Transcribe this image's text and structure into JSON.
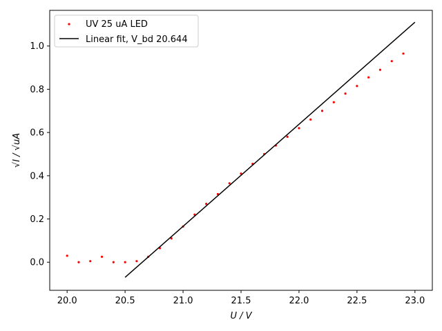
{
  "chart_data": {
    "type": "scatter",
    "xlabel": "U / V",
    "ylabel": "√I / √uA",
    "xlim": [
      19.85,
      23.15
    ],
    "ylim": [
      -0.13,
      1.165
    ],
    "xticks": [
      20.0,
      20.5,
      21.0,
      21.5,
      22.0,
      22.5,
      23.0
    ],
    "xtick_labels": [
      "20.0",
      "20.5",
      "21.0",
      "21.5",
      "22.0",
      "22.5",
      "23.0"
    ],
    "yticks": [
      0.0,
      0.2,
      0.4,
      0.6,
      0.8,
      1.0
    ],
    "ytick_labels": [
      "0.0",
      "0.2",
      "0.4",
      "0.6",
      "0.8",
      "1.0"
    ],
    "grid": false,
    "legend_position": "top-left",
    "colors": {
      "scatter": "#ff0000",
      "fit": "#000000"
    },
    "series": [
      {
        "name": "UV 25 uA LED",
        "kind": "scatter",
        "x": [
          20.0,
          20.1,
          20.2,
          20.3,
          20.4,
          20.5,
          20.6,
          20.7,
          20.8,
          20.9,
          21.0,
          21.1,
          21.2,
          21.3,
          21.4,
          21.5,
          21.6,
          21.7,
          21.8,
          21.9,
          22.0,
          22.1,
          22.2,
          22.3,
          22.4,
          22.5,
          22.6,
          22.7,
          22.8,
          22.9
        ],
        "y": [
          0.03,
          0.0,
          0.005,
          0.025,
          0.0,
          0.0,
          0.005,
          0.025,
          0.065,
          0.11,
          0.165,
          0.22,
          0.27,
          0.315,
          0.365,
          0.41,
          0.455,
          0.5,
          0.54,
          0.58,
          0.62,
          0.66,
          0.7,
          0.74,
          0.78,
          0.815,
          0.855,
          0.89,
          0.93,
          0.965
        ]
      },
      {
        "name": "Linear fit, V_bd 20.644",
        "kind": "line",
        "x": [
          20.5,
          23.0
        ],
        "y": [
          -0.07,
          1.11
        ]
      }
    ]
  }
}
